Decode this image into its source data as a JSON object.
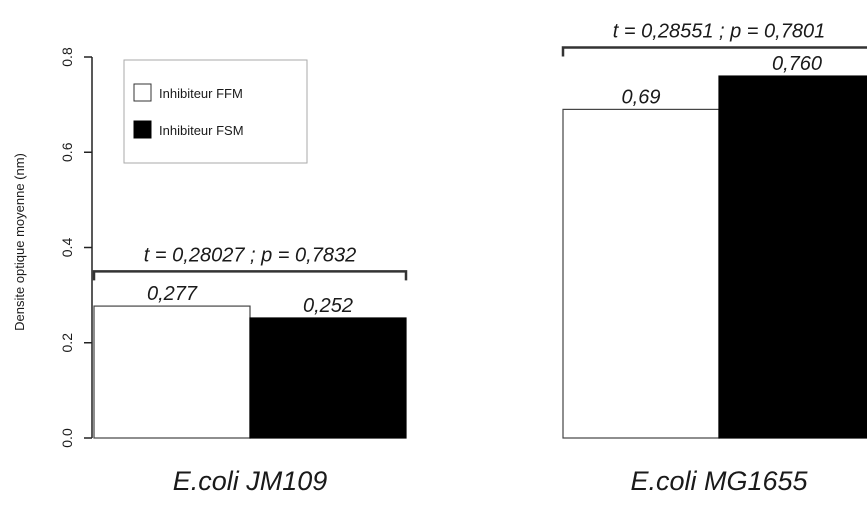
{
  "chart_data": {
    "type": "bar",
    "title": "",
    "xlabel": "",
    "ylabel": "Densite optique moyenne (nm)",
    "ylim": [
      0,
      0.8
    ],
    "yticks": [
      "0.0",
      "0.2",
      "0.4",
      "0.6",
      "0.8"
    ],
    "categories": [
      "E.coli JM109",
      "E.coli MG1655"
    ],
    "series": [
      {
        "name": "Inhibiteur FFM",
        "color": "#ffffff",
        "values": [
          0.277,
          0.69
        ],
        "labels": [
          "0,277",
          "0,69"
        ]
      },
      {
        "name": "Inhibiteur FSM",
        "color": "#000000",
        "values": [
          0.252,
          0.76
        ],
        "labels": [
          "0,252",
          "0,760"
        ]
      }
    ],
    "annotations": [
      {
        "category": 0,
        "text": "t = 0,28027 ; p = 0,7832",
        "y": 0.35
      },
      {
        "category": 1,
        "text": "t = 0,28551 ; p = 0,7801",
        "y": 0.82
      }
    ],
    "legend_position": "top-left",
    "grid": false
  }
}
